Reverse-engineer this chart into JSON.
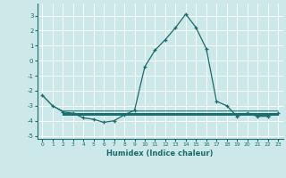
{
  "xlabel": "Humidex (Indice chaleur)",
  "background_color": "#cce8e8",
  "grid_color": "#ffffff",
  "line_color": "#1a6b6b",
  "xlim": [
    -0.5,
    23.5
  ],
  "ylim": [
    -5.2,
    3.8
  ],
  "xticks": [
    0,
    1,
    2,
    3,
    4,
    5,
    6,
    7,
    8,
    9,
    10,
    11,
    12,
    13,
    14,
    15,
    16,
    17,
    18,
    19,
    20,
    21,
    22,
    23
  ],
  "yticks": [
    -5,
    -4,
    -3,
    -2,
    -1,
    0,
    1,
    2,
    3
  ],
  "lines": [
    {
      "x": [
        0,
        1,
        2,
        3,
        4,
        5,
        6,
        7,
        8,
        9,
        10,
        11,
        12,
        13,
        14,
        15,
        16,
        17,
        18,
        19,
        20,
        21,
        22,
        23
      ],
      "y": [
        -2.3,
        -3.0,
        -3.4,
        -3.5,
        -3.8,
        -3.9,
        -4.1,
        -4.0,
        -3.6,
        -3.3,
        -0.4,
        0.7,
        1.4,
        2.2,
        3.1,
        2.2,
        0.8,
        -2.7,
        -3.0,
        -3.7,
        -3.5,
        -3.7,
        -3.7,
        -3.5
      ],
      "marker": true
    },
    {
      "x": [
        0,
        1,
        2,
        3,
        4,
        5,
        6,
        7,
        8,
        9,
        10,
        11,
        12,
        13,
        14,
        15,
        16,
        17,
        18,
        19,
        20,
        21,
        22,
        23
      ],
      "y": [
        -2.3,
        -3.0,
        -3.35,
        -3.35,
        -3.35,
        -3.35,
        -3.35,
        -3.35,
        -3.35,
        -3.35,
        -3.35,
        -3.35,
        -3.35,
        -3.35,
        -3.35,
        -3.35,
        -3.35,
        -3.35,
        -3.35,
        -3.35,
        -3.35,
        -3.35,
        -3.35,
        -3.35
      ],
      "marker": false
    },
    {
      "x": [
        2,
        3,
        4,
        5,
        6,
        7,
        8,
        9,
        10,
        11,
        12,
        13,
        14,
        15,
        16,
        17,
        18,
        19,
        20,
        21,
        22,
        23
      ],
      "y": [
        -3.5,
        -3.5,
        -3.5,
        -3.5,
        -3.5,
        -3.5,
        -3.5,
        -3.5,
        -3.5,
        -3.5,
        -3.5,
        -3.5,
        -3.5,
        -3.5,
        -3.5,
        -3.5,
        -3.5,
        -3.5,
        -3.5,
        -3.5,
        -3.5,
        -3.5
      ],
      "marker": false
    },
    {
      "x": [
        2,
        3,
        4,
        5,
        6,
        7,
        8,
        9,
        10,
        11,
        12,
        13,
        14,
        15,
        16,
        17,
        18,
        19,
        20,
        21,
        22,
        23
      ],
      "y": [
        -3.55,
        -3.55,
        -3.55,
        -3.55,
        -3.55,
        -3.55,
        -3.55,
        -3.55,
        -3.55,
        -3.55,
        -3.55,
        -3.55,
        -3.55,
        -3.55,
        -3.55,
        -3.55,
        -3.55,
        -3.55,
        -3.55,
        -3.55,
        -3.55,
        -3.55
      ],
      "marker": false
    },
    {
      "x": [
        2,
        3,
        4,
        5,
        6,
        7,
        8,
        9,
        10,
        11,
        12,
        13,
        14,
        15,
        16,
        17,
        18,
        19,
        20,
        21,
        22,
        23
      ],
      "y": [
        -3.6,
        -3.6,
        -3.6,
        -3.6,
        -3.6,
        -3.6,
        -3.6,
        -3.6,
        -3.6,
        -3.6,
        -3.6,
        -3.6,
        -3.6,
        -3.6,
        -3.6,
        -3.6,
        -3.6,
        -3.6,
        -3.6,
        -3.6,
        -3.6,
        -3.6
      ],
      "marker": false
    }
  ]
}
